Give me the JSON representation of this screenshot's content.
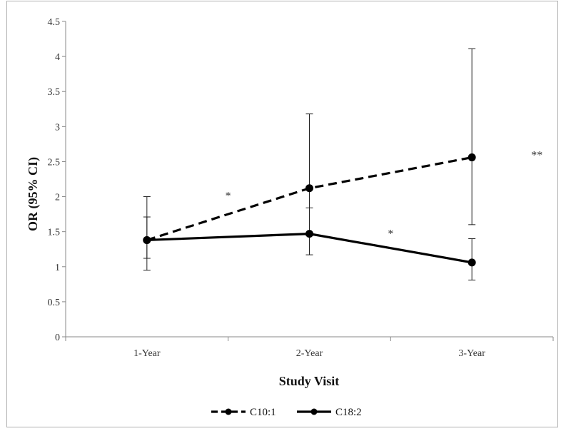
{
  "chart_data": {
    "type": "line",
    "title": "",
    "xlabel": "Study Visit",
    "ylabel": "OR (95% CI)",
    "categories": [
      "1-Year",
      "2-Year",
      "3-Year"
    ],
    "ylim": [
      0,
      4.5
    ],
    "yticks": [
      "0",
      "0.5",
      "1",
      "1.5",
      "2",
      "2.5",
      "3",
      "3.5",
      "4",
      "4.5"
    ],
    "grid": false,
    "legend_position": "bottom",
    "series": [
      {
        "name": "C10:1",
        "style": "dashed",
        "color": "#000000",
        "values": [
          1.38,
          2.12,
          2.56
        ],
        "ci_lower": [
          0.95,
          1.44,
          1.6
        ],
        "ci_upper": [
          2.0,
          3.18,
          4.11
        ]
      },
      {
        "name": "C18:2",
        "style": "solid",
        "color": "#000000",
        "values": [
          1.38,
          1.47,
          1.06
        ],
        "ci_lower": [
          1.12,
          1.17,
          0.81
        ],
        "ci_upper": [
          1.71,
          1.84,
          1.4
        ]
      }
    ],
    "annotations": [
      {
        "text": "*",
        "x": 1.5,
        "y": 2.02
      },
      {
        "text": "*",
        "x": 2.5,
        "y": 1.48
      },
      {
        "text": "**",
        "x": 3.4,
        "y": 2.6
      }
    ]
  }
}
